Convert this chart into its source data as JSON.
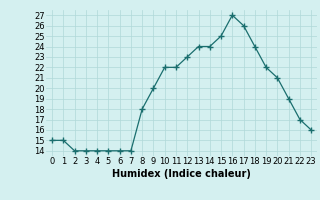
{
  "x": [
    0,
    1,
    2,
    3,
    4,
    5,
    6,
    7,
    8,
    9,
    10,
    11,
    12,
    13,
    14,
    15,
    16,
    17,
    18,
    19,
    20,
    21,
    22,
    23
  ],
  "y": [
    15,
    15,
    14,
    14,
    14,
    14,
    14,
    14,
    18,
    20,
    22,
    22,
    23,
    24,
    24,
    25,
    27,
    26,
    24,
    22,
    21,
    19,
    17,
    16
  ],
  "line_color": "#1a6e6e",
  "marker": "+",
  "marker_size": 4,
  "bg_color": "#d4f0f0",
  "grid_color": "#b0d8d8",
  "xlabel": "Humidex (Indice chaleur)",
  "xlim": [
    -0.5,
    23.5
  ],
  "ylim": [
    13.5,
    27.5
  ],
  "yticks": [
    14,
    15,
    16,
    17,
    18,
    19,
    20,
    21,
    22,
    23,
    24,
    25,
    26,
    27
  ],
  "xtick_labels": [
    "0",
    "1",
    "2",
    "3",
    "4",
    "5",
    "6",
    "7",
    "8",
    "9",
    "10",
    "11",
    "12",
    "13",
    "14",
    "15",
    "16",
    "17",
    "18",
    "19",
    "20",
    "21",
    "22",
    "23"
  ],
  "label_fontsize": 7,
  "tick_fontsize": 6
}
